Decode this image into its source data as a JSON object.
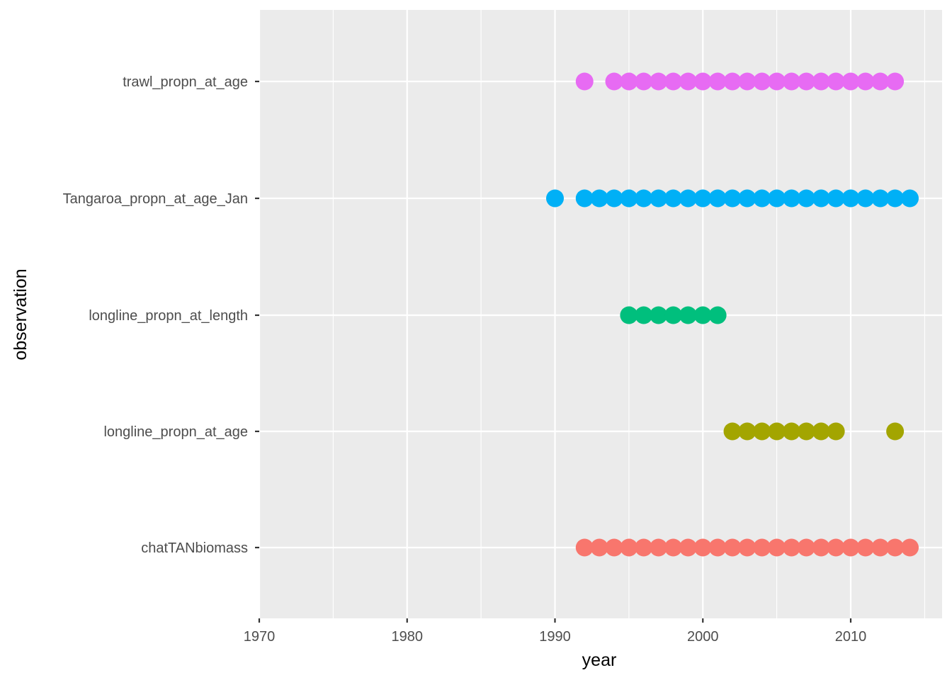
{
  "chart_data": {
    "type": "scatter",
    "title": "",
    "xlabel": "year",
    "ylabel": "observation",
    "xlim": [
      1970,
      2015
    ],
    "x_ticks": [
      1970,
      1980,
      1990,
      2000,
      2010
    ],
    "categories": [
      "chatTANbiomass",
      "longline_propn_at_age",
      "longline_propn_at_length",
      "Tangaroa_propn_at_age_Jan",
      "trawl_propn_at_age"
    ],
    "grid": true,
    "legend": "none",
    "series": [
      {
        "category": "chatTANbiomass",
        "color": "#F8766D",
        "x": [
          1992,
          1993,
          1994,
          1995,
          1996,
          1997,
          1998,
          1999,
          2000,
          2001,
          2002,
          2003,
          2004,
          2005,
          2006,
          2007,
          2008,
          2009,
          2010,
          2011,
          2012,
          2013,
          2014
        ]
      },
      {
        "category": "longline_propn_at_age",
        "color": "#A3A500",
        "x": [
          2002,
          2003,
          2004,
          2005,
          2006,
          2007,
          2008,
          2009,
          2013
        ]
      },
      {
        "category": "longline_propn_at_length",
        "color": "#00BF7D",
        "x": [
          1995,
          1996,
          1997,
          1998,
          1999,
          2000,
          2001
        ]
      },
      {
        "category": "Tangaroa_propn_at_age_Jan",
        "color": "#00B0F6",
        "x": [
          1990,
          1992,
          1993,
          1994,
          1995,
          1996,
          1997,
          1998,
          1999,
          2000,
          2001,
          2002,
          2003,
          2004,
          2005,
          2006,
          2007,
          2008,
          2009,
          2010,
          2011,
          2012,
          2013,
          2014
        ]
      },
      {
        "category": "trawl_propn_at_age",
        "color": "#E76BF3",
        "x": [
          1992,
          1994,
          1995,
          1996,
          1997,
          1998,
          1999,
          2000,
          2001,
          2002,
          2003,
          2004,
          2005,
          2006,
          2007,
          2008,
          2009,
          2010,
          2011,
          2012,
          2013
        ]
      }
    ]
  }
}
